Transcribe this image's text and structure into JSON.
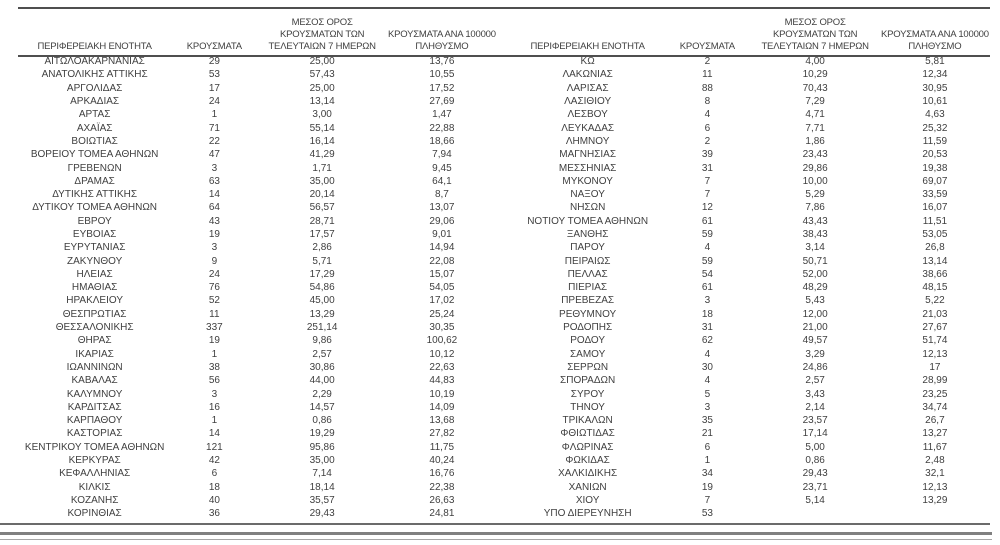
{
  "colors": {
    "text": "#3f3f3f",
    "rule_dark": "#4f4f4f",
    "rule_mid": "#6b6b6b",
    "rule_gray": "#808080",
    "rule_light": "#a6a6a6"
  },
  "table": {
    "headers": [
      "ΠΕΡΙΦΕΡΕΙΑΚΗ ΕΝΟΤΗΤΑ",
      "ΚΡΟΥΣΜΑΤΑ",
      "ΜΕΣΟΣ ΟΡΟΣ\nΚΡΟΥΣΜΑΤΩΝ ΤΩΝ\nΤΕΛΕΥΤΑΙΩΝ 7 ΗΜΕΡΩΝ",
      "ΚΡΟΥΣΜΑΤΑ ΑΝΑ 100000\nΠΛΗΘΥΣΜΟ"
    ],
    "left_rows": [
      [
        "ΑΙΤΩΛΟΑΚΑΡΝΑΝΙΑΣ",
        "29",
        "25,00",
        "13,76"
      ],
      [
        "ΑΝΑΤΟΛΙΚΗΣ ΑΤΤΙΚΗΣ",
        "53",
        "57,43",
        "10,55"
      ],
      [
        "ΑΡΓΟΛΙΔΑΣ",
        "17",
        "25,00",
        "17,52"
      ],
      [
        "ΑΡΚΑΔΙΑΣ",
        "24",
        "13,14",
        "27,69"
      ],
      [
        "ΑΡΤΑΣ",
        "1",
        "3,00",
        "1,47"
      ],
      [
        "ΑΧΑΪΑΣ",
        "71",
        "55,14",
        "22,88"
      ],
      [
        "ΒΟΙΩΤΙΑΣ",
        "22",
        "16,14",
        "18,66"
      ],
      [
        "ΒΟΡΕΙΟΥ ΤΟΜΕΑ ΑΘΗΝΩΝ",
        "47",
        "41,29",
        "7,94"
      ],
      [
        "ΓΡΕΒΕΝΩΝ",
        "3",
        "1,71",
        "9,45"
      ],
      [
        "ΔΡΑΜΑΣ",
        "63",
        "35,00",
        "64,1"
      ],
      [
        "ΔΥΤΙΚΗΣ ΑΤΤΙΚΗΣ",
        "14",
        "20,14",
        "8,7"
      ],
      [
        "ΔΥΤΙΚΟΥ ΤΟΜΕΑ ΑΘΗΝΩΝ",
        "64",
        "56,57",
        "13,07"
      ],
      [
        "ΕΒΡΟΥ",
        "43",
        "28,71",
        "29,06"
      ],
      [
        "ΕΥΒΟΙΑΣ",
        "19",
        "17,57",
        "9,01"
      ],
      [
        "ΕΥΡΥΤΑΝΙΑΣ",
        "3",
        "2,86",
        "14,94"
      ],
      [
        "ΖΑΚΥΝΘΟΥ",
        "9",
        "5,71",
        "22,08"
      ],
      [
        "ΗΛΕΙΑΣ",
        "24",
        "17,29",
        "15,07"
      ],
      [
        "ΗΜΑΘΙΑΣ",
        "76",
        "54,86",
        "54,05"
      ],
      [
        "ΗΡΑΚΛΕΙΟΥ",
        "52",
        "45,00",
        "17,02"
      ],
      [
        "ΘΕΣΠΡΩΤΙΑΣ",
        "11",
        "13,29",
        "25,24"
      ],
      [
        "ΘΕΣΣΑΛΟΝΙΚΗΣ",
        "337",
        "251,14",
        "30,35"
      ],
      [
        "ΘΗΡΑΣ",
        "19",
        "9,86",
        "100,62"
      ],
      [
        "ΙΚΑΡΙΑΣ",
        "1",
        "2,57",
        "10,12"
      ],
      [
        "ΙΩΑΝΝΙΝΩΝ",
        "38",
        "30,86",
        "22,63"
      ],
      [
        "ΚΑΒΑΛΑΣ",
        "56",
        "44,00",
        "44,83"
      ],
      [
        "ΚΑΛΥΜΝΟΥ",
        "3",
        "2,29",
        "10,19"
      ],
      [
        "ΚΑΡΔΙΤΣΑΣ",
        "16",
        "14,57",
        "14,09"
      ],
      [
        "ΚΑΡΠΑΘΟΥ",
        "1",
        "0,86",
        "13,68"
      ],
      [
        "ΚΑΣΤΟΡΙΑΣ",
        "14",
        "19,29",
        "27,82"
      ],
      [
        "ΚΕΝΤΡΙΚΟΥ ΤΟΜΕΑ ΑΘΗΝΩΝ",
        "121",
        "95,86",
        "11,75"
      ],
      [
        "ΚΕΡΚΥΡΑΣ",
        "42",
        "35,00",
        "40,24"
      ],
      [
        "ΚΕΦΑΛΛΗΝΙΑΣ",
        "6",
        "7,14",
        "16,76"
      ],
      [
        "ΚΙΛΚΙΣ",
        "18",
        "18,14",
        "22,38"
      ],
      [
        "ΚΟΖΑΝΗΣ",
        "40",
        "35,57",
        "26,63"
      ],
      [
        "ΚΟΡΙΝΘΙΑΣ",
        "36",
        "29,43",
        "24,81"
      ]
    ],
    "right_rows": [
      [
        "ΚΩ",
        "2",
        "4,00",
        "5,81"
      ],
      [
        "ΛΑΚΩΝΙΑΣ",
        "11",
        "10,29",
        "12,34"
      ],
      [
        "ΛΑΡΙΣΑΣ",
        "88",
        "70,43",
        "30,95"
      ],
      [
        "ΛΑΣΙΘΙΟΥ",
        "8",
        "7,29",
        "10,61"
      ],
      [
        "ΛΕΣΒΟΥ",
        "4",
        "4,71",
        "4,63"
      ],
      [
        "ΛΕΥΚΑΔΑΣ",
        "6",
        "7,71",
        "25,32"
      ],
      [
        "ΛΗΜΝΟΥ",
        "2",
        "1,86",
        "11,59"
      ],
      [
        "ΜΑΓΝΗΣΙΑΣ",
        "39",
        "23,43",
        "20,53"
      ],
      [
        "ΜΕΣΣΗΝΙΑΣ",
        "31",
        "29,86",
        "19,38"
      ],
      [
        "ΜΥΚΟΝΟΥ",
        "7",
        "10,00",
        "69,07"
      ],
      [
        "ΝΑΞΟΥ",
        "7",
        "5,29",
        "33,59"
      ],
      [
        "ΝΗΣΩΝ",
        "12",
        "7,86",
        "16,07"
      ],
      [
        "ΝΟΤΙΟΥ ΤΟΜΕΑ ΑΘΗΝΩΝ",
        "61",
        "43,43",
        "11,51"
      ],
      [
        "ΞΑΝΘΗΣ",
        "59",
        "38,43",
        "53,05"
      ],
      [
        "ΠΑΡΟΥ",
        "4",
        "3,14",
        "26,8"
      ],
      [
        "ΠΕΙΡΑΙΩΣ",
        "59",
        "50,71",
        "13,14"
      ],
      [
        "ΠΕΛΛΑΣ",
        "54",
        "52,00",
        "38,66"
      ],
      [
        "ΠΙΕΡΙΑΣ",
        "61",
        "48,29",
        "48,15"
      ],
      [
        "ΠΡΕΒΕΖΑΣ",
        "3",
        "5,43",
        "5,22"
      ],
      [
        "ΡΕΘΥΜΝΟΥ",
        "18",
        "12,00",
        "21,03"
      ],
      [
        "ΡΟΔΟΠΗΣ",
        "31",
        "21,00",
        "27,67"
      ],
      [
        "ΡΟΔΟΥ",
        "62",
        "49,57",
        "51,74"
      ],
      [
        "ΣΑΜΟΥ",
        "4",
        "3,29",
        "12,13"
      ],
      [
        "ΣΕΡΡΩΝ",
        "30",
        "24,86",
        "17"
      ],
      [
        "ΣΠΟΡΑΔΩΝ",
        "4",
        "2,57",
        "28,99"
      ],
      [
        "ΣΥΡΟΥ",
        "5",
        "3,43",
        "23,25"
      ],
      [
        "ΤΗΝΟΥ",
        "3",
        "2,14",
        "34,74"
      ],
      [
        "ΤΡΙΚΑΛΩΝ",
        "35",
        "23,57",
        "26,7"
      ],
      [
        "ΦΘΙΩΤΙΔΑΣ",
        "21",
        "17,14",
        "13,27"
      ],
      [
        "ΦΛΩΡΙΝΑΣ",
        "6",
        "5,00",
        "11,67"
      ],
      [
        "ΦΩΚΙΔΑΣ",
        "1",
        "0,86",
        "2,48"
      ],
      [
        "ΧΑΛΚΙΔΙΚΗΣ",
        "34",
        "29,43",
        "32,1"
      ],
      [
        "ΧΑΝΙΩΝ",
        "19",
        "23,71",
        "12,13"
      ],
      [
        "ΧΙΟΥ",
        "7",
        "5,14",
        "13,29"
      ],
      [
        "ΥΠΟ ΔΙΕΡΕΥΝΗΣΗ",
        "53",
        "",
        ""
      ]
    ]
  }
}
